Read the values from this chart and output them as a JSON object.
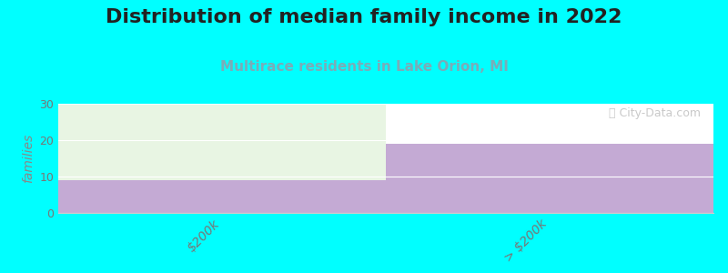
{
  "title": "Distribution of median family income in 2022",
  "subtitle": "Multirace residents in Lake Orion, MI",
  "categories": [
    "$200k",
    "> $200k"
  ],
  "bar_values": [
    9,
    19
  ],
  "bar_color_purple": "#c4aad4",
  "bar_color_green_top": "#e8f5e3",
  "background_color": "#00ffff",
  "plot_bg_color": "#ffffff",
  "ylabel": "families",
  "ylim": [
    0,
    30
  ],
  "yticks": [
    0,
    10,
    20,
    30
  ],
  "title_fontsize": 16,
  "subtitle_fontsize": 11,
  "subtitle_color": "#7aacb8",
  "title_color": "#222222",
  "watermark": "ⓘ City-Data.com",
  "watermark_color": "#c0c0c0"
}
